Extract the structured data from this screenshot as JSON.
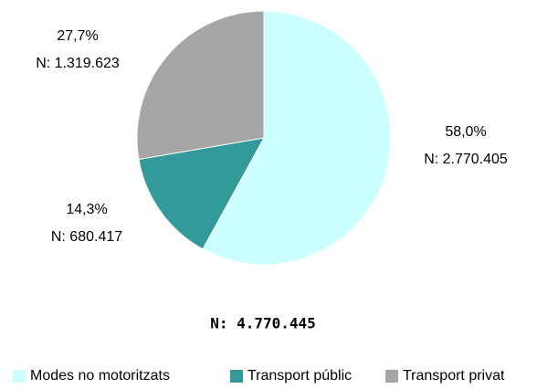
{
  "chart_data": {
    "type": "pie",
    "categories": [
      "Modes no motoritzats",
      "Transport públic",
      "Transport privat"
    ],
    "values": [
      58.0,
      14.3,
      27.7
    ],
    "value_labels": [
      "58,0%",
      "14,3%",
      "27,7%"
    ],
    "counts": [
      2770405,
      680417,
      1319623
    ],
    "count_labels": [
      "N: 2.770.405",
      "N: 680.417",
      "N: 1.319.623"
    ],
    "colors": [
      "#ccffff",
      "#339999",
      "#a6a6a6"
    ],
    "total": 4770445,
    "total_label": "N: 4.770.445",
    "legend": "bottom"
  }
}
